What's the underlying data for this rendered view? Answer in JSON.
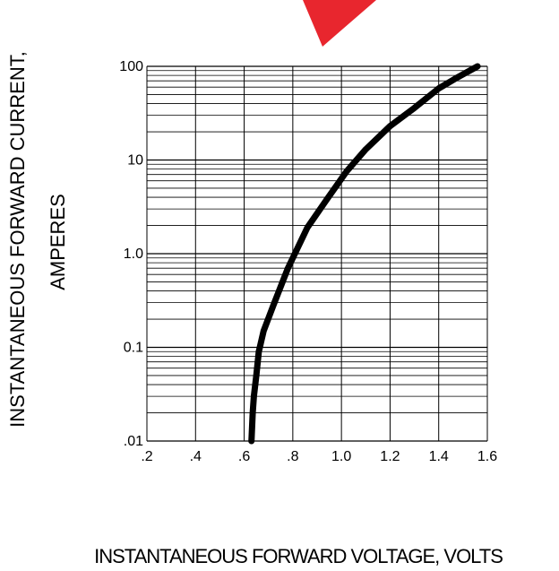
{
  "chart_data": {
    "type": "line",
    "xlabel": "INSTANTANEOUS FORWARD VOLTAGE,  VOLTS",
    "ylabel_line1": "INSTANTANEOUS FORWARD CURRENT,",
    "ylabel_line2": "AMPERES",
    "x_scale": "linear",
    "y_scale": "log",
    "xlim": [
      0.2,
      1.6
    ],
    "ylim": [
      0.01,
      100
    ],
    "x_ticks": [
      0.2,
      0.4,
      0.6,
      0.8,
      1.0,
      1.2,
      1.4,
      1.6
    ],
    "x_tick_labels": [
      ".2",
      ".4",
      ".6",
      ".8",
      "1.0",
      "1.2",
      "1.4",
      "1.6"
    ],
    "y_ticks": [
      0.01,
      0.1,
      1,
      10,
      100
    ],
    "y_tick_labels": [
      ".01",
      "0.1",
      "1.0",
      "10",
      "100"
    ],
    "grid": true,
    "legend": "none",
    "series": [
      {
        "x": [
          0.63,
          0.635,
          0.64,
          0.65,
          0.66,
          0.68,
          0.72,
          0.78,
          0.86,
          0.94,
          1.02,
          1.1,
          1.2,
          1.3,
          1.4,
          1.48,
          1.56
        ],
        "y": [
          0.01,
          0.02,
          0.03,
          0.05,
          0.09,
          0.15,
          0.28,
          0.7,
          1.9,
          3.8,
          7.5,
          13,
          23,
          36,
          58,
          77,
          100
        ]
      }
    ],
    "colors": {
      "line": "#000000",
      "grid": "#000000",
      "watermark": "#e8262e"
    }
  }
}
